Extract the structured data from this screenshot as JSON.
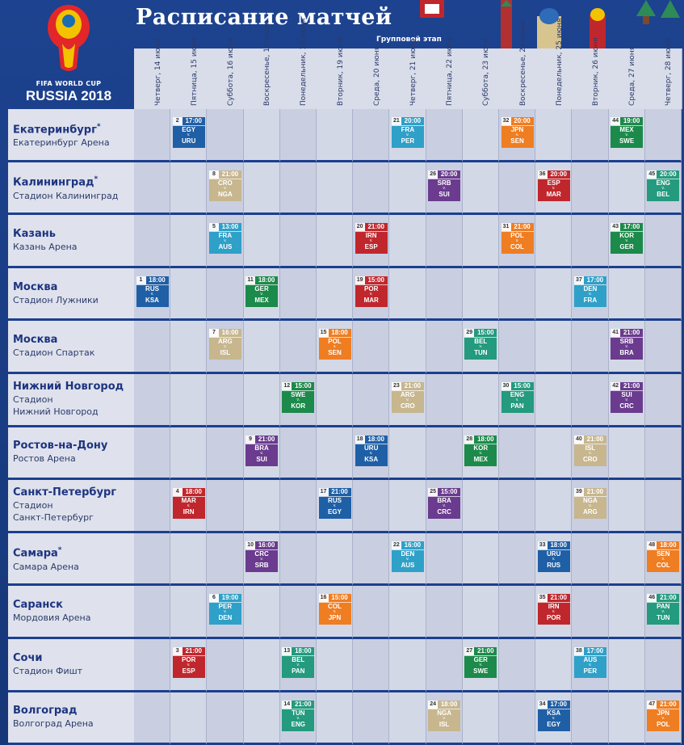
{
  "header": {
    "title": "Расписание матчей",
    "subtitle": "Групповой этап",
    "logo_line1": "FIFA WORLD CUP",
    "logo_line2": "RUSSIA 2018"
  },
  "days": [
    "Четверг, 14 июня",
    "Пятница, 15 июня",
    "Суббота, 16 июня",
    "Воскресенье, 17 июня",
    "Понедельник, 18 июня",
    "Вторник, 19 июня",
    "Среда, 20 июня",
    "Четверг, 21 июня",
    "Пятница, 22 июня",
    "Суббота, 23 июня",
    "Воскресенье, 24 июня",
    "Понедельник, 25 июня",
    "Вторник, 26 июня",
    "Среда, 27 июня",
    "Четверг, 28 июня"
  ],
  "colors": {
    "blue": "#1a6db3",
    "teal": "#2fa0c8",
    "red": "#c0272d",
    "orange": "#ef7d22",
    "green": "#1c8a4a",
    "purple": "#6a3b8e",
    "tan": "#c7b68e",
    "darkblue": "#1f5fa6",
    "seagreen": "#249a7e",
    "maroon": "#a3232c"
  },
  "venues": [
    {
      "city": "Екатеринбург",
      "star": "*",
      "stadium": [
        "Екатеринбург Арена"
      ]
    },
    {
      "city": "Калининград",
      "star": "*",
      "stadium": [
        "Стадион Калининград"
      ]
    },
    {
      "city": "Казань",
      "star": "",
      "stadium": [
        "Казань Арена"
      ]
    },
    {
      "city": "Москва",
      "star": "",
      "stadium": [
        "Стадион Лужники"
      ]
    },
    {
      "city": "Москва",
      "star": "",
      "stadium": [
        "Стадион Спартак"
      ]
    },
    {
      "city": "Нижний Новгород",
      "star": "",
      "stadium": [
        "Стадион",
        "Нижний Новгород"
      ]
    },
    {
      "city": "Ростов-на-Дону",
      "star": "",
      "stadium": [
        "Ростов Арена"
      ]
    },
    {
      "city": "Санкт-Петербург",
      "star": "",
      "stadium": [
        "Стадион",
        "Санкт-Петербург"
      ]
    },
    {
      "city": "Самара",
      "star": "*",
      "stadium": [
        "Самара Арена"
      ]
    },
    {
      "city": "Саранск",
      "star": "",
      "stadium": [
        "Мордовия Арена"
      ]
    },
    {
      "city": "Сочи",
      "star": "",
      "stadium": [
        "Стадион Фишт"
      ]
    },
    {
      "city": "Волгоград",
      "star": "",
      "stadium": [
        "Волгоград Арена"
      ]
    }
  ],
  "versus": "v.",
  "matches": [
    {
      "row": 0,
      "day": 1,
      "num": "2",
      "time": "17:00",
      "home": "EGY",
      "away": "URU",
      "color": "darkblue"
    },
    {
      "row": 0,
      "day": 7,
      "num": "21",
      "time": "20:00",
      "home": "FRA",
      "away": "PER",
      "color": "teal"
    },
    {
      "row": 0,
      "day": 10,
      "num": "32",
      "time": "20:00",
      "home": "JPN",
      "away": "SEN",
      "color": "orange"
    },
    {
      "row": 0,
      "day": 13,
      "num": "44",
      "time": "19:00",
      "home": "MEX",
      "away": "SWE",
      "color": "green"
    },
    {
      "row": 1,
      "day": 2,
      "num": "8",
      "time": "21:00",
      "home": "CRO",
      "away": "NGA",
      "color": "tan"
    },
    {
      "row": 1,
      "day": 8,
      "num": "26",
      "time": "20:00",
      "home": "SRB",
      "away": "SUI",
      "color": "purple"
    },
    {
      "row": 1,
      "day": 11,
      "num": "36",
      "time": "20:00",
      "home": "ESP",
      "away": "MAR",
      "color": "red"
    },
    {
      "row": 1,
      "day": 14,
      "num": "45",
      "time": "20:00",
      "home": "ENG",
      "away": "BEL",
      "color": "seagreen"
    },
    {
      "row": 2,
      "day": 2,
      "num": "5",
      "time": "13:00",
      "home": "FRA",
      "away": "AUS",
      "color": "teal"
    },
    {
      "row": 2,
      "day": 6,
      "num": "20",
      "time": "21:00",
      "home": "IRN",
      "away": "ESP",
      "color": "red"
    },
    {
      "row": 2,
      "day": 10,
      "num": "31",
      "time": "21:00",
      "home": "POL",
      "away": "COL",
      "color": "orange"
    },
    {
      "row": 2,
      "day": 13,
      "num": "43",
      "time": "17:00",
      "home": "KOR",
      "away": "GER",
      "color": "green"
    },
    {
      "row": 3,
      "day": 0,
      "num": "1",
      "time": "18:00",
      "home": "RUS",
      "away": "KSA",
      "color": "darkblue"
    },
    {
      "row": 3,
      "day": 3,
      "num": "11",
      "time": "18:00",
      "home": "GER",
      "away": "MEX",
      "color": "green"
    },
    {
      "row": 3,
      "day": 6,
      "num": "19",
      "time": "15:00",
      "home": "POR",
      "away": "MAR",
      "color": "red"
    },
    {
      "row": 3,
      "day": 12,
      "num": "37",
      "time": "17:00",
      "home": "DEN",
      "away": "FRA",
      "color": "teal"
    },
    {
      "row": 4,
      "day": 2,
      "num": "7",
      "time": "16:00",
      "home": "ARG",
      "away": "ISL",
      "color": "tan"
    },
    {
      "row": 4,
      "day": 5,
      "num": "15",
      "time": "18:00",
      "home": "POL",
      "away": "SEN",
      "color": "orange"
    },
    {
      "row": 4,
      "day": 9,
      "num": "29",
      "time": "15:00",
      "home": "BEL",
      "away": "TUN",
      "color": "seagreen"
    },
    {
      "row": 4,
      "day": 13,
      "num": "41",
      "time": "21:00",
      "home": "SRB",
      "away": "BRA",
      "color": "purple"
    },
    {
      "row": 5,
      "day": 4,
      "num": "12",
      "time": "15:00",
      "home": "SWE",
      "away": "KOR",
      "color": "green"
    },
    {
      "row": 5,
      "day": 7,
      "num": "23",
      "time": "21:00",
      "home": "ARG",
      "away": "CRO",
      "color": "tan"
    },
    {
      "row": 5,
      "day": 10,
      "num": "30",
      "time": "15:00",
      "home": "ENG",
      "away": "PAN",
      "color": "seagreen"
    },
    {
      "row": 5,
      "day": 13,
      "num": "42",
      "time": "21:00",
      "home": "SUI",
      "away": "CRC",
      "color": "purple"
    },
    {
      "row": 6,
      "day": 3,
      "num": "9",
      "time": "21:00",
      "home": "BRA",
      "away": "SUI",
      "color": "purple"
    },
    {
      "row": 6,
      "day": 6,
      "num": "18",
      "time": "18:00",
      "home": "URU",
      "away": "KSA",
      "color": "darkblue"
    },
    {
      "row": 6,
      "day": 9,
      "num": "28",
      "time": "18:00",
      "home": "KOR",
      "away": "MEX",
      "color": "green"
    },
    {
      "row": 6,
      "day": 12,
      "num": "40",
      "time": "21:00",
      "home": "ISL",
      "away": "CRO",
      "color": "tan"
    },
    {
      "row": 7,
      "day": 1,
      "num": "4",
      "time": "18:00",
      "home": "MAR",
      "away": "IRN",
      "color": "red"
    },
    {
      "row": 7,
      "day": 5,
      "num": "17",
      "time": "21:00",
      "home": "RUS",
      "away": "EGY",
      "color": "darkblue"
    },
    {
      "row": 7,
      "day": 8,
      "num": "25",
      "time": "15:00",
      "home": "BRA",
      "away": "CRC",
      "color": "purple"
    },
    {
      "row": 7,
      "day": 12,
      "num": "39",
      "time": "21:00",
      "home": "NGA",
      "away": "ARG",
      "color": "tan"
    },
    {
      "row": 8,
      "day": 3,
      "num": "10",
      "time": "16:00",
      "home": "CRC",
      "away": "SRB",
      "color": "purple"
    },
    {
      "row": 8,
      "day": 7,
      "num": "22",
      "time": "16:00",
      "home": "DEN",
      "away": "AUS",
      "color": "teal"
    },
    {
      "row": 8,
      "day": 11,
      "num": "33",
      "time": "18:00",
      "home": "URU",
      "away": "RUS",
      "color": "darkblue"
    },
    {
      "row": 8,
      "day": 14,
      "num": "48",
      "time": "18:00",
      "home": "SEN",
      "away": "COL",
      "color": "orange"
    },
    {
      "row": 9,
      "day": 2,
      "num": "6",
      "time": "19:00",
      "home": "PER",
      "away": "DEN",
      "color": "teal"
    },
    {
      "row": 9,
      "day": 5,
      "num": "16",
      "time": "15:00",
      "home": "COL",
      "away": "JPN",
      "color": "orange"
    },
    {
      "row": 9,
      "day": 11,
      "num": "35",
      "time": "21:00",
      "home": "IRN",
      "away": "POR",
      "color": "red"
    },
    {
      "row": 9,
      "day": 14,
      "num": "46",
      "time": "21:00",
      "home": "PAN",
      "away": "TUN",
      "color": "seagreen"
    },
    {
      "row": 10,
      "day": 1,
      "num": "3",
      "time": "21:00",
      "home": "POR",
      "away": "ESP",
      "color": "red"
    },
    {
      "row": 10,
      "day": 4,
      "num": "13",
      "time": "18:00",
      "home": "BEL",
      "away": "PAN",
      "color": "seagreen"
    },
    {
      "row": 10,
      "day": 9,
      "num": "27",
      "time": "21:00",
      "home": "GER",
      "away": "SWE",
      "color": "green"
    },
    {
      "row": 10,
      "day": 12,
      "num": "38",
      "time": "17:00",
      "home": "AUS",
      "away": "PER",
      "color": "teal"
    },
    {
      "row": 11,
      "day": 4,
      "num": "14",
      "time": "21:00",
      "home": "TUN",
      "away": "ENG",
      "color": "seagreen"
    },
    {
      "row": 11,
      "day": 8,
      "num": "24",
      "time": "18:00",
      "home": "NGA",
      "away": "ISL",
      "color": "tan"
    },
    {
      "row": 11,
      "day": 11,
      "num": "34",
      "time": "17:00",
      "home": "KSA",
      "away": "EGY",
      "color": "darkblue"
    },
    {
      "row": 11,
      "day": 14,
      "num": "47",
      "time": "21:00",
      "home": "JPN",
      "away": "POL",
      "color": "orange"
    }
  ]
}
